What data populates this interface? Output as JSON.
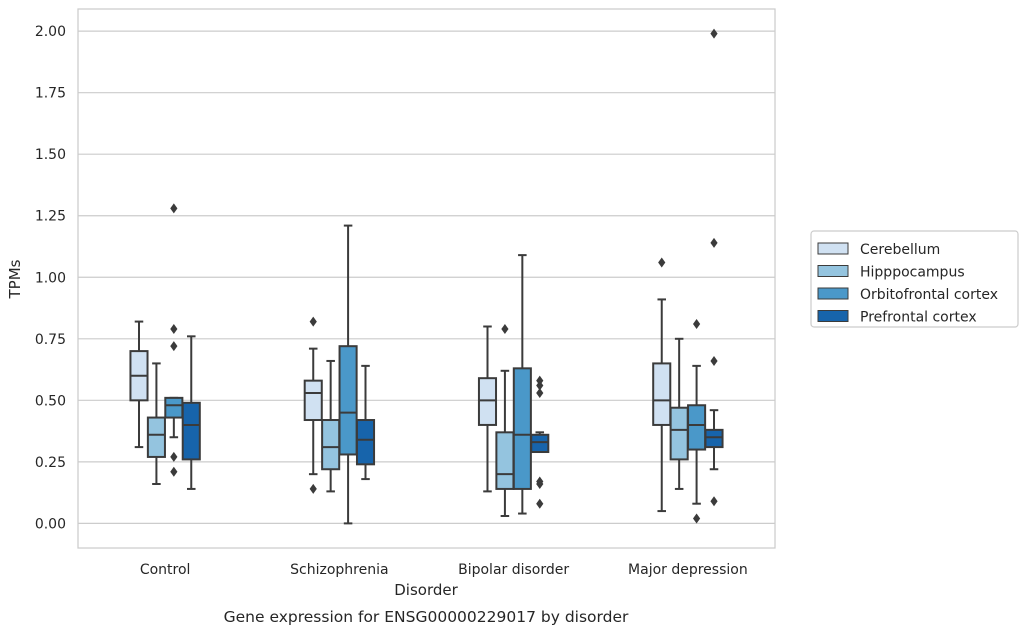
{
  "chart_data": {
    "type": "box",
    "title": "",
    "caption": "Gene expression for ENSG00000229017 by disorder",
    "xlabel": "Disorder",
    "ylabel": "TPMs",
    "ylim": [
      -0.1,
      2.09
    ],
    "yticks": [
      0.0,
      0.25,
      0.5,
      0.75,
      1.0,
      1.25,
      1.5,
      1.75,
      2.0
    ],
    "ytick_labels": [
      "0.00",
      "0.25",
      "0.50",
      "0.75",
      "1.00",
      "1.25",
      "1.50",
      "1.75",
      "2.00"
    ],
    "grid": true,
    "legend_position": "right",
    "categories": [
      "Control",
      "Schizophrenia",
      "Bipolar disorder",
      "Major depression"
    ],
    "series": [
      {
        "name": "Cerebellum",
        "color": "#d0e1f2",
        "boxes": [
          {
            "whislo": 0.31,
            "q1": 0.5,
            "med": 0.6,
            "q3": 0.7,
            "whishi": 0.82,
            "fliers": []
          },
          {
            "whislo": 0.2,
            "q1": 0.42,
            "med": 0.53,
            "q3": 0.58,
            "whishi": 0.71,
            "fliers": [
              0.14,
              0.82
            ]
          },
          {
            "whislo": 0.13,
            "q1": 0.4,
            "med": 0.5,
            "q3": 0.59,
            "whishi": 0.8,
            "fliers": []
          },
          {
            "whislo": 0.05,
            "q1": 0.4,
            "med": 0.5,
            "q3": 0.65,
            "whishi": 0.91,
            "fliers": [
              1.06
            ]
          }
        ]
      },
      {
        "name": "Hipppocampus",
        "color": "#94c4df",
        "boxes": [
          {
            "whislo": 0.16,
            "q1": 0.27,
            "med": 0.36,
            "q3": 0.43,
            "whishi": 0.65,
            "fliers": []
          },
          {
            "whislo": 0.13,
            "q1": 0.22,
            "med": 0.31,
            "q3": 0.42,
            "whishi": 0.66,
            "fliers": []
          },
          {
            "whislo": 0.03,
            "q1": 0.14,
            "med": 0.2,
            "q3": 0.37,
            "whishi": 0.62,
            "fliers": [
              0.79
            ]
          },
          {
            "whislo": 0.14,
            "q1": 0.26,
            "med": 0.38,
            "q3": 0.47,
            "whishi": 0.75,
            "fliers": []
          }
        ]
      },
      {
        "name": "Orbitofrontal cortex",
        "color": "#4a98c9",
        "boxes": [
          {
            "whislo": 0.35,
            "q1": 0.43,
            "med": 0.48,
            "q3": 0.51,
            "whishi": 0.51,
            "fliers": [
              0.21,
              0.27,
              0.72,
              0.79,
              1.28
            ]
          },
          {
            "whislo": 0.0,
            "q1": 0.28,
            "med": 0.45,
            "q3": 0.72,
            "whishi": 1.21,
            "fliers": []
          },
          {
            "whislo": 0.04,
            "q1": 0.14,
            "med": 0.36,
            "q3": 0.63,
            "whishi": 1.09,
            "fliers": []
          },
          {
            "whislo": 0.08,
            "q1": 0.3,
            "med": 0.4,
            "q3": 0.48,
            "whishi": 0.64,
            "fliers": [
              0.02,
              0.81
            ]
          }
        ]
      },
      {
        "name": "Prefrontal cortex",
        "color": "#1764ab",
        "boxes": [
          {
            "whislo": 0.14,
            "q1": 0.26,
            "med": 0.4,
            "q3": 0.49,
            "whishi": 0.76,
            "fliers": []
          },
          {
            "whislo": 0.18,
            "q1": 0.24,
            "med": 0.34,
            "q3": 0.42,
            "whishi": 0.64,
            "fliers": []
          },
          {
            "whislo": 0.29,
            "q1": 0.29,
            "med": 0.33,
            "q3": 0.36,
            "whishi": 0.37,
            "fliers": [
              0.08,
              0.16,
              0.17,
              0.53,
              0.56,
              0.58
            ]
          },
          {
            "whislo": 0.22,
            "q1": 0.31,
            "med": 0.35,
            "q3": 0.38,
            "whishi": 0.46,
            "fliers": [
              0.09,
              0.66,
              1.14,
              1.99
            ]
          }
        ]
      }
    ]
  }
}
